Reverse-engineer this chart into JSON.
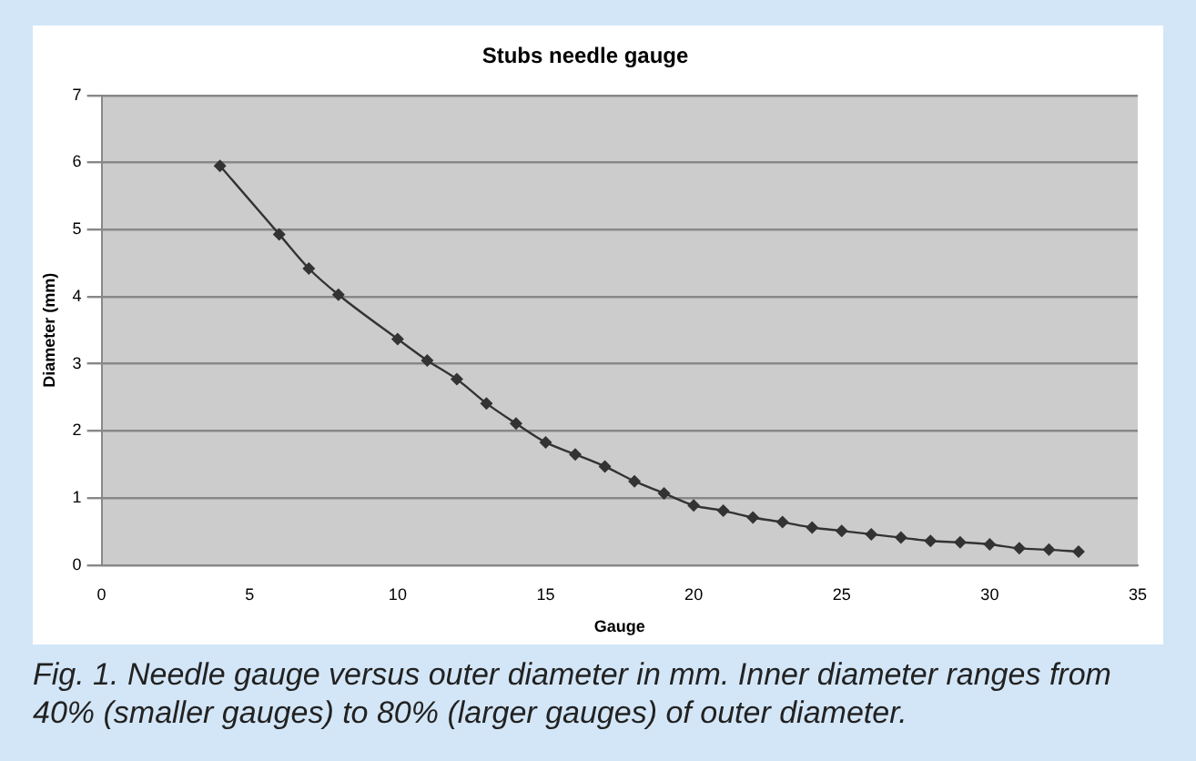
{
  "chart_data": {
    "type": "line",
    "title": "Stubs needle gauge",
    "xlabel": "Gauge",
    "ylabel": "Diameter (mm)",
    "series": [
      {
        "color": "#333333",
        "x": [
          4,
          6,
          7,
          8,
          10,
          11,
          12,
          13,
          14,
          15,
          16,
          17,
          18,
          19,
          20,
          21,
          22,
          23,
          24,
          25,
          26,
          27,
          28,
          29,
          30,
          31,
          32,
          33
        ],
        "values": [
          5.95,
          4.93,
          4.42,
          4.03,
          3.37,
          3.05,
          2.77,
          2.41,
          2.11,
          1.83,
          1.65,
          1.47,
          1.25,
          1.07,
          0.89,
          0.81,
          0.71,
          0.64,
          0.56,
          0.51,
          0.46,
          0.41,
          0.36,
          0.34,
          0.31,
          0.25,
          0.23,
          0.2
        ]
      }
    ],
    "xlim": [
      0,
      35
    ],
    "xticks": [
      0,
      5,
      10,
      15,
      20,
      25,
      30,
      35
    ],
    "ylim": [
      0,
      7
    ],
    "yticks": [
      0,
      1,
      2,
      3,
      4,
      5,
      6,
      7
    ],
    "grid": "y",
    "legend": false,
    "marker": "diamond",
    "line_style": "solid",
    "annotations": [
      "Fig. 1. Needle gauge versus outer diameter in mm. Inner diameter ranges from 40% (smaller gauges) to 80% (larger gauges) of outer diameter."
    ]
  }
}
